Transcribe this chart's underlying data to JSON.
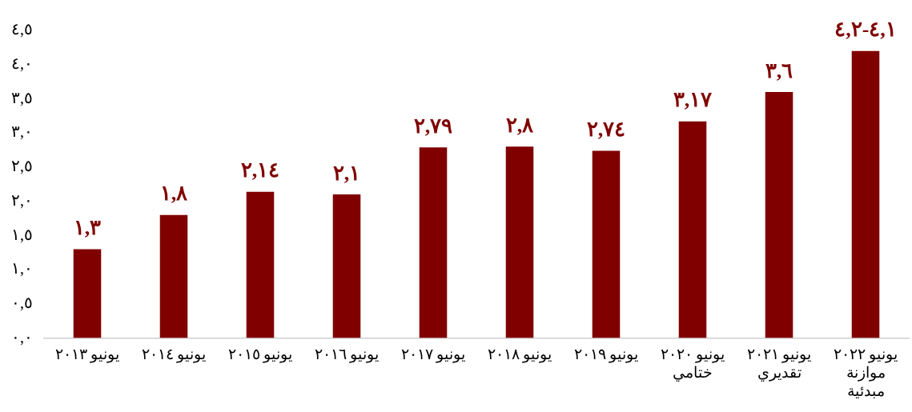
{
  "chart_data": {
    "type": "bar",
    "categories": [
      "يونيو ٢٠١٣",
      "يونيو ٢٠١٤",
      "يونيو ٢٠١٥",
      "يونيو ٢٠١٦",
      "يونيو ٢٠١٧",
      "يونيو ٢٠١٨",
      "يونيو ٢٠١٩",
      "يونيو ٢٠٢٠\nختامي",
      "يونيو ٢٠٢١\nتقديري",
      "يونيو ٢٠٢٢\nموازنة\nمبدئية"
    ],
    "values": [
      1.3,
      1.8,
      2.14,
      2.1,
      2.79,
      2.8,
      2.74,
      3.17,
      3.6,
      4.2
    ],
    "value_labels": [
      "١,٣",
      "١,٨",
      "٢,١٤",
      "٢,١",
      "٢,٧٩",
      "٢,٨",
      "٢,٧٤",
      "٣,١٧",
      "٣,٦",
      "٤,١-٤,٢"
    ],
    "color": "#800000",
    "ylim": [
      0,
      4.5
    ],
    "yticks": [
      {
        "value": 0,
        "label": "٠,٠"
      },
      {
        "value": 0.5,
        "label": "٠,٥"
      },
      {
        "value": 1,
        "label": "١,٠"
      },
      {
        "value": 1.5,
        "label": "١,٥"
      },
      {
        "value": 2,
        "label": "٢,٠"
      },
      {
        "value": 2.5,
        "label": "٢,٥"
      },
      {
        "value": 3,
        "label": "٣,٠"
      },
      {
        "value": 3.5,
        "label": "٣,٥"
      },
      {
        "value": 4,
        "label": "٤,٠"
      },
      {
        "value": 4.5,
        "label": "٤,٥"
      }
    ],
    "grid": false,
    "legend": false
  }
}
